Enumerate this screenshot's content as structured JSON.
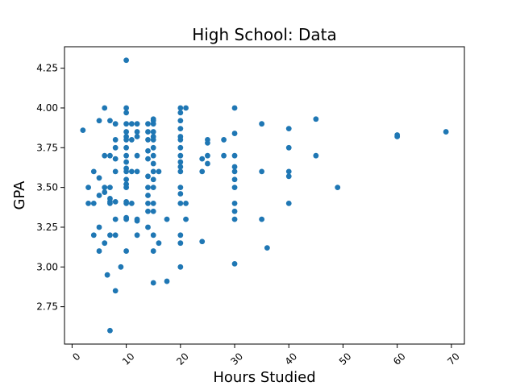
{
  "chart_data": {
    "type": "scatter",
    "title": "High School: Data",
    "xlabel": "Hours Studied",
    "ylabel": "GPA",
    "xlim": [
      -1.4,
      72.4
    ],
    "ylim": [
      2.515,
      4.385
    ],
    "grid": false,
    "x_ticks": [
      0,
      10,
      20,
      30,
      40,
      50,
      60,
      70
    ],
    "y_ticks": [
      2.75,
      3.0,
      3.25,
      3.5,
      3.75,
      4.0,
      4.25
    ],
    "x_tick_labels": [
      "0",
      "10",
      "20",
      "30",
      "40",
      "50",
      "60",
      "70"
    ],
    "y_tick_labels": [
      "2.75",
      "3.00",
      "3.25",
      "3.50",
      "3.75",
      "4.00",
      "4.25"
    ],
    "x_tick_rotation": 45,
    "marker_color": "#1f77b4",
    "points": [
      [
        2,
        3.86
      ],
      [
        3,
        3.5
      ],
      [
        3,
        3.4
      ],
      [
        4,
        3.6
      ],
      [
        4,
        3.2
      ],
      [
        4,
        3.4
      ],
      [
        5,
        3.92
      ],
      [
        5,
        3.56
      ],
      [
        5,
        3.45
      ],
      [
        5,
        3.25
      ],
      [
        5,
        3.1
      ],
      [
        6,
        4.0
      ],
      [
        6,
        3.7
      ],
      [
        6,
        3.5
      ],
      [
        6,
        3.47
      ],
      [
        6,
        3.15
      ],
      [
        6.5,
        2.95
      ],
      [
        7,
        3.92
      ],
      [
        7,
        3.7
      ],
      [
        7,
        3.5
      ],
      [
        7,
        3.43
      ],
      [
        7,
        3.41
      ],
      [
        7,
        3.4
      ],
      [
        7,
        3.2
      ],
      [
        7,
        2.6
      ],
      [
        8,
        3.9
      ],
      [
        8,
        3.8
      ],
      [
        8,
        3.75
      ],
      [
        8,
        3.68
      ],
      [
        8,
        3.6
      ],
      [
        8,
        3.41
      ],
      [
        8,
        3.3
      ],
      [
        8,
        3.2
      ],
      [
        8,
        2.85
      ],
      [
        9,
        3.0
      ],
      [
        10,
        4.3
      ],
      [
        10,
        4.0
      ],
      [
        10,
        3.97
      ],
      [
        10,
        3.9
      ],
      [
        10,
        3.85
      ],
      [
        10,
        3.82
      ],
      [
        10,
        3.8
      ],
      [
        10,
        3.75
      ],
      [
        10,
        3.7
      ],
      [
        10,
        3.66
      ],
      [
        10,
        3.62
      ],
      [
        10,
        3.6
      ],
      [
        10,
        3.55
      ],
      [
        10,
        3.52
      ],
      [
        10,
        3.5
      ],
      [
        10,
        3.41
      ],
      [
        10,
        3.4
      ],
      [
        10,
        3.31
      ],
      [
        10,
        3.3
      ],
      [
        10,
        3.1
      ],
      [
        11,
        3.9
      ],
      [
        11,
        3.8
      ],
      [
        11,
        3.6
      ],
      [
        11,
        3.4
      ],
      [
        12,
        3.9
      ],
      [
        12,
        3.85
      ],
      [
        12,
        3.82
      ],
      [
        12,
        3.7
      ],
      [
        12,
        3.6
      ],
      [
        12,
        3.3
      ],
      [
        12,
        3.29
      ],
      [
        12,
        3.2
      ],
      [
        14,
        3.9
      ],
      [
        14,
        3.85
      ],
      [
        14,
        3.8
      ],
      [
        14,
        3.73
      ],
      [
        14,
        3.68
      ],
      [
        14,
        3.57
      ],
      [
        14,
        3.5
      ],
      [
        14,
        3.45
      ],
      [
        14,
        3.4
      ],
      [
        14,
        3.35
      ],
      [
        14,
        3.25
      ],
      [
        15,
        3.93
      ],
      [
        15,
        3.92
      ],
      [
        15,
        3.9
      ],
      [
        15,
        3.85
      ],
      [
        15,
        3.82
      ],
      [
        15,
        3.8
      ],
      [
        15,
        3.75
      ],
      [
        15,
        3.7
      ],
      [
        15,
        3.65
      ],
      [
        15,
        3.6
      ],
      [
        15,
        3.55
      ],
      [
        15,
        3.5
      ],
      [
        15,
        3.4
      ],
      [
        15,
        3.35
      ],
      [
        15,
        3.2
      ],
      [
        15,
        3.1
      ],
      [
        15,
        2.9
      ],
      [
        16,
        3.6
      ],
      [
        16,
        3.15
      ],
      [
        17.5,
        3.3
      ],
      [
        17.5,
        2.91
      ],
      [
        20,
        4.0
      ],
      [
        20,
        3.97
      ],
      [
        20,
        3.92
      ],
      [
        20,
        3.87
      ],
      [
        20,
        3.82
      ],
      [
        20,
        3.8
      ],
      [
        20,
        3.75
      ],
      [
        20,
        3.7
      ],
      [
        20,
        3.66
      ],
      [
        20,
        3.63
      ],
      [
        20,
        3.6
      ],
      [
        20,
        3.5
      ],
      [
        20,
        3.46
      ],
      [
        20,
        3.4
      ],
      [
        20,
        3.2
      ],
      [
        20,
        3.15
      ],
      [
        20,
        3.0
      ],
      [
        21,
        4.0
      ],
      [
        21,
        3.4
      ],
      [
        21,
        3.3
      ],
      [
        24,
        3.68
      ],
      [
        24,
        3.6
      ],
      [
        24,
        3.16
      ],
      [
        25,
        3.8
      ],
      [
        25,
        3.78
      ],
      [
        25,
        3.7
      ],
      [
        25,
        3.65
      ],
      [
        28,
        3.8
      ],
      [
        28,
        3.7
      ],
      [
        30,
        4.0
      ],
      [
        30,
        3.84
      ],
      [
        30,
        3.7
      ],
      [
        30,
        3.63
      ],
      [
        30,
        3.6
      ],
      [
        30,
        3.55
      ],
      [
        30,
        3.5
      ],
      [
        30,
        3.4
      ],
      [
        30,
        3.35
      ],
      [
        30,
        3.3
      ],
      [
        30,
        3.02
      ],
      [
        35,
        3.9
      ],
      [
        35,
        3.6
      ],
      [
        35,
        3.3
      ],
      [
        36,
        3.12
      ],
      [
        40,
        3.87
      ],
      [
        40,
        3.75
      ],
      [
        40,
        3.6
      ],
      [
        40,
        3.57
      ],
      [
        40,
        3.4
      ],
      [
        45,
        3.93
      ],
      [
        45,
        3.7
      ],
      [
        49,
        3.5
      ],
      [
        60,
        3.83
      ],
      [
        60,
        3.82
      ],
      [
        69,
        3.85
      ]
    ]
  }
}
